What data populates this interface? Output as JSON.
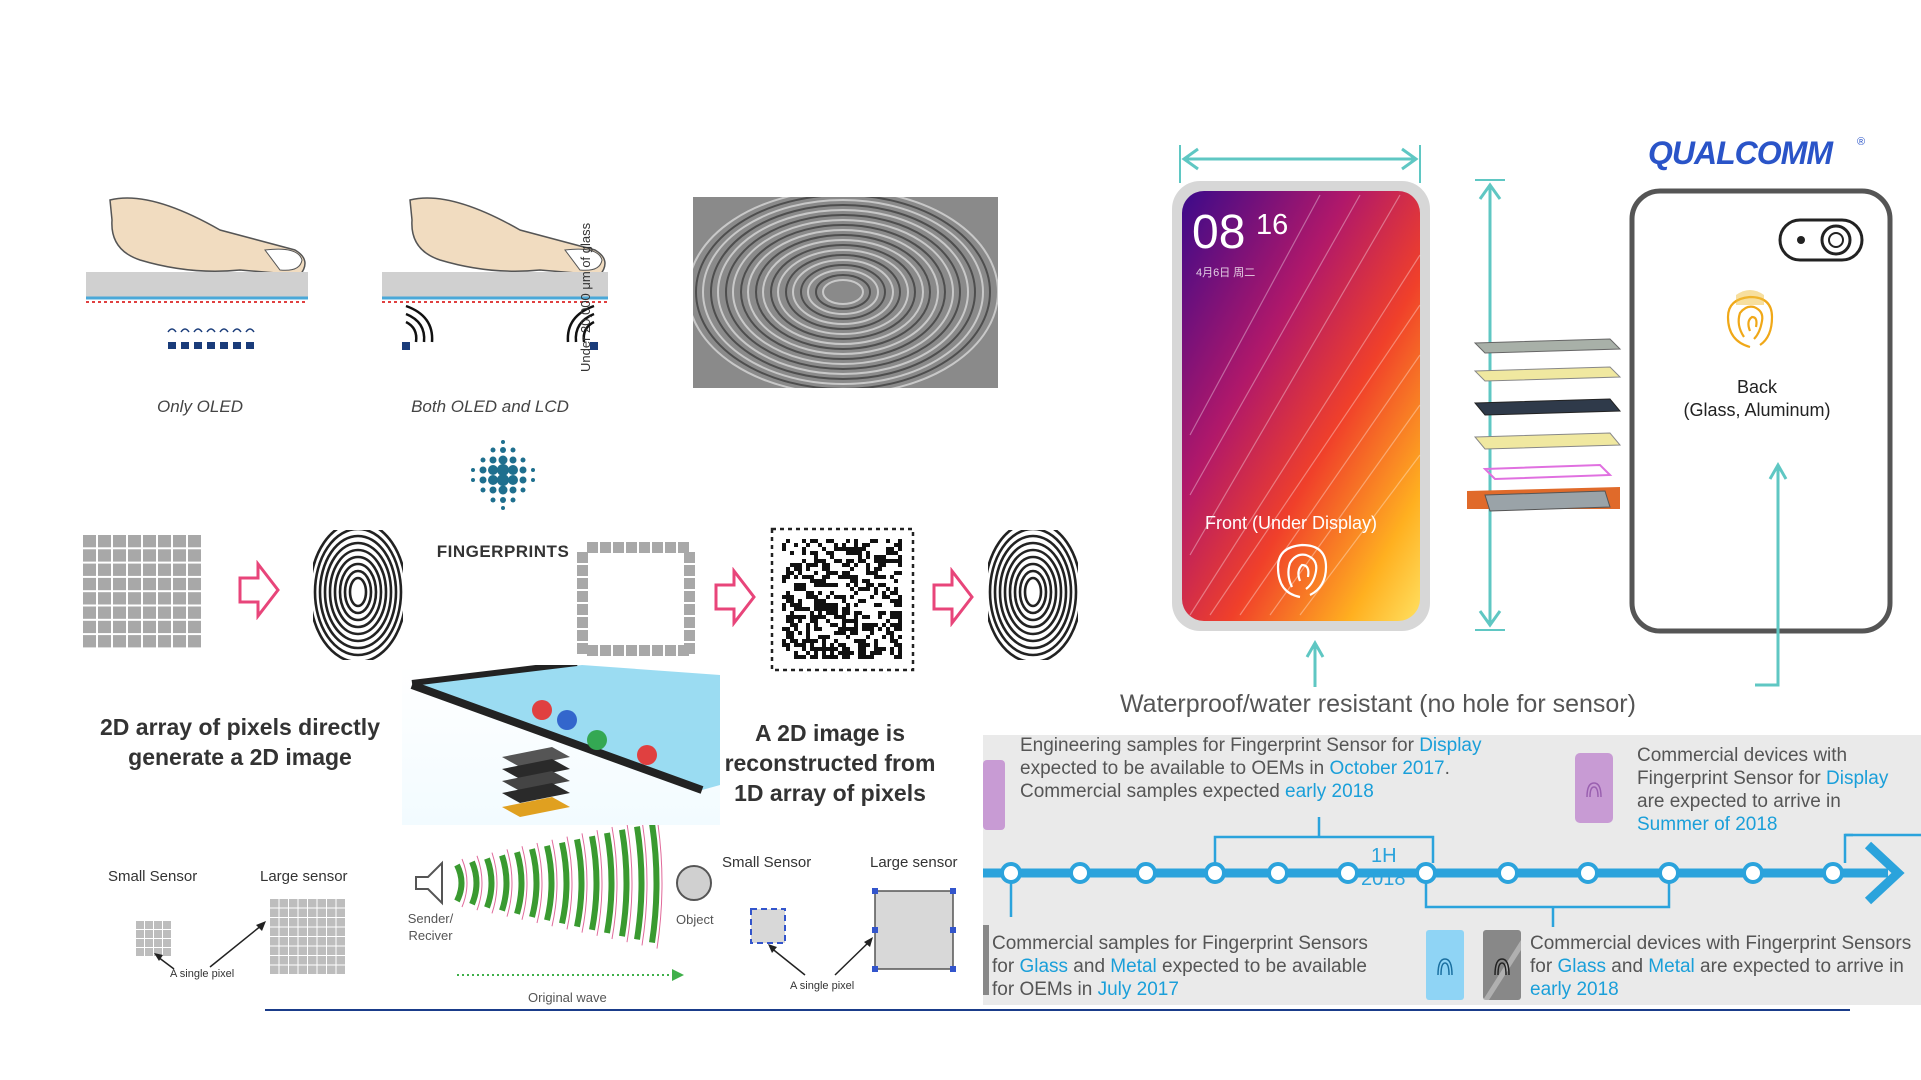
{
  "sensing": {
    "only_oled": "Only OLED",
    "both_oled_lcd": "Both OLED and LCD",
    "glass_label": "Under 20,000 μm of glass",
    "fingerprints_logo": "FINGERPRINTS"
  },
  "arrays": {
    "caption_2d": "2D array of pixels directly generate a 2D image",
    "caption_1d": "A 2D image is reconstructed from 1D array of pixels"
  },
  "sensor_compare_left": {
    "small": "Small Sensor",
    "large": "Large sensor",
    "pixel": "A single pixel"
  },
  "sensor_compare_right": {
    "small": "Small Sensor",
    "large": "Large sensor",
    "pixel": "A single pixel"
  },
  "ultrasonic": {
    "sender": "Sender/ Reciver",
    "object": "Object",
    "wave": "Original wave"
  },
  "phone": {
    "brand": "QUALCOMM",
    "time_hour": "08",
    "time_min": "16",
    "date": "4月6日 周二",
    "front": "Front (Under Display)",
    "back_line1": "Back",
    "back_line2": "(Glass, Aluminum)",
    "waterproof": "Waterproof/water resistant (no hole for sensor)"
  },
  "timeline": {
    "accent": "#1a9fd9",
    "center_label_1": "1H",
    "center_label_2": "2018",
    "top_left": {
      "pre": "Engineering samples for Fingerprint Sensor for ",
      "hl1": "Display",
      "mid1": " expected to be available to OEMs in ",
      "hl2": "October 2017",
      "mid2": ". Commercial samples expected ",
      "hl3": "early 2018"
    },
    "top_right": {
      "pre": "Commercial devices with Fingerprint Sensor for ",
      "hl1": "Display",
      "mid1": " are expected to arrive in ",
      "hl2": "Summer of 2018"
    },
    "bottom_left": {
      "pre": "Commercial samples for Fingerprint Sensors for ",
      "hl1": "Glass",
      "mid1": " and ",
      "hl2": "Metal",
      "mid2": " expected to be available for OEMs in ",
      "hl3": "July 2017"
    },
    "bottom_right": {
      "pre": "Commercial devices with Fingerprint Sensors for ",
      "hl1": "Glass",
      "mid1": " and ",
      "hl2": "Metal",
      "mid2": " are expected to arrive in ",
      "hl3": "early 2018"
    }
  }
}
